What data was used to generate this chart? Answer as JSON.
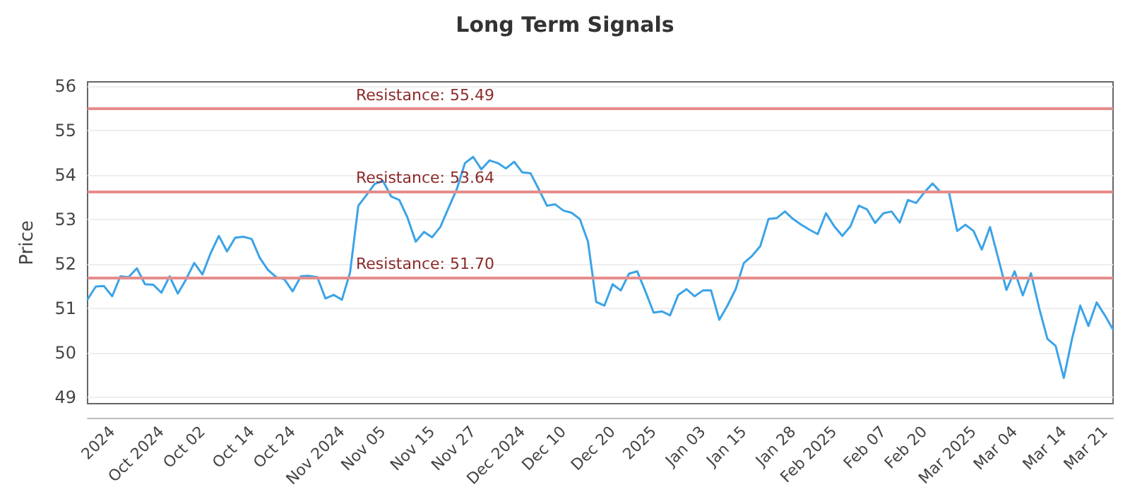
{
  "chart_data": {
    "type": "line",
    "title": "Long Term Signals",
    "ylabel": "Price",
    "categories": [
      null,
      null,
      null,
      "2024",
      null,
      null,
      null,
      null,
      null,
      "Oct 2024",
      null,
      null,
      null,
      null,
      "Oct 02",
      null,
      null,
      null,
      null,
      null,
      "Oct 14",
      null,
      null,
      null,
      null,
      "Oct 24",
      null,
      null,
      null,
      null,
      null,
      "Nov 2024",
      null,
      null,
      null,
      null,
      "Nov 05",
      null,
      null,
      null,
      null,
      null,
      "Nov 15",
      null,
      null,
      null,
      null,
      "Nov 27",
      null,
      null,
      null,
      null,
      null,
      "Dec 2024",
      null,
      null,
      null,
      null,
      "Dec 10",
      null,
      null,
      null,
      null,
      null,
      "Dec 20",
      null,
      null,
      null,
      null,
      "2025",
      null,
      null,
      null,
      null,
      null,
      "Jan 03",
      null,
      null,
      null,
      null,
      "Jan 15",
      null,
      null,
      null,
      null,
      null,
      "Jan 28",
      null,
      null,
      null,
      null,
      "Feb 2025",
      null,
      null,
      null,
      null,
      null,
      "Feb 07",
      null,
      null,
      null,
      null,
      "Feb 20",
      null,
      null,
      null,
      null,
      null,
      "Mar 2025",
      null,
      null,
      null,
      null,
      "Mar 04",
      null,
      null,
      null,
      null,
      null,
      "Mar 14",
      null,
      null,
      null,
      null,
      "Mar 21",
      null
    ],
    "series": [
      {
        "color": "#3ba3e8",
        "values": [
          51.2,
          51.49,
          51.5,
          51.27,
          51.72,
          51.7,
          51.9,
          51.54,
          51.53,
          51.35,
          51.72,
          51.33,
          51.65,
          52.02,
          51.76,
          52.24,
          52.63,
          52.28,
          52.59,
          52.61,
          52.56,
          52.13,
          51.86,
          51.7,
          51.65,
          51.38,
          51.72,
          51.73,
          51.7,
          51.22,
          51.3,
          51.19,
          51.81,
          53.31,
          53.55,
          53.8,
          53.87,
          53.52,
          53.44,
          53.04,
          52.5,
          52.72,
          52.6,
          52.83,
          53.26,
          53.68,
          54.27,
          54.41,
          54.13,
          54.33,
          54.27,
          54.15,
          54.3,
          54.06,
          54.04,
          53.68,
          53.31,
          53.34,
          53.2,
          53.15,
          53.01,
          52.5,
          51.14,
          51.06,
          51.54,
          51.4,
          51.78,
          51.83,
          51.38,
          50.9,
          50.93,
          50.84,
          51.3,
          51.43,
          51.27,
          51.4,
          51.4,
          50.74,
          51.06,
          51.43,
          52.02,
          52.18,
          52.4,
          53.01,
          53.03,
          53.18,
          53.01,
          52.88,
          52.77,
          52.67,
          53.14,
          52.85,
          52.63,
          52.85,
          53.31,
          53.23,
          52.92,
          53.14,
          53.18,
          52.93,
          53.44,
          53.37,
          53.61,
          53.81,
          53.61,
          53.61,
          52.74,
          52.88,
          52.74,
          52.32,
          52.83,
          52.13,
          51.41,
          51.83,
          51.29,
          51.79,
          51.0,
          50.31,
          50.15,
          49.43,
          50.31,
          51.06,
          50.6,
          51.13,
          50.84,
          50.52
        ]
      }
    ],
    "ylim": [
      48.85,
      56.1
    ],
    "yticks": [
      49,
      50,
      51,
      52,
      53,
      54,
      55,
      56
    ],
    "grid": "y",
    "marker": "none",
    "line_style": "solid",
    "ref_lines": [
      {
        "axis": "y",
        "value": 55.49,
        "label": "Resistance: 55.49",
        "color": "#e58c8c"
      },
      {
        "axis": "y",
        "value": 53.64,
        "label": "Resistance: 53.64",
        "color": "#e58c8c"
      },
      {
        "axis": "y",
        "value": 51.7,
        "label": "Resistance: 51.70",
        "color": "#e58c8c"
      }
    ]
  }
}
